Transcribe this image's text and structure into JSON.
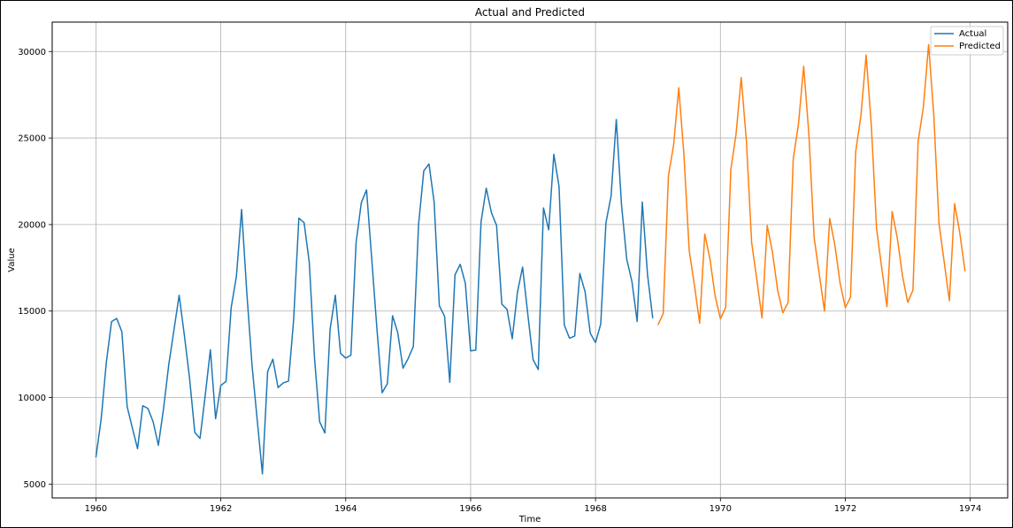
{
  "chart_data": {
    "type": "line",
    "title": "Actual and Predicted",
    "xlabel": "Time",
    "ylabel": "Value",
    "xlim": [
      1959.3,
      1974.6
    ],
    "ylim": [
      4200,
      31700
    ],
    "xticks": [
      1960,
      1962,
      1964,
      1966,
      1968,
      1970,
      1972,
      1974
    ],
    "yticks": [
      5000,
      10000,
      15000,
      20000,
      25000,
      30000
    ],
    "grid": true,
    "legend": "top-right",
    "series": [
      {
        "name": "Actual",
        "color": "#1f77b4",
        "start": 1960,
        "step": 0.08333,
        "values": [
          6550,
          8730,
          12040,
          14390,
          14570,
          13800,
          9480,
          8250,
          7040,
          9530,
          9370,
          8600,
          7240,
          9380,
          11920,
          13900,
          15910,
          13600,
          11100,
          7980,
          7640,
          10100,
          12760,
          8780,
          10700,
          10930,
          15200,
          17000,
          20870,
          16040,
          11850,
          8670,
          5590,
          11500,
          12220,
          10580,
          10850,
          10950,
          14500,
          20370,
          20110,
          17800,
          12270,
          8600,
          7950,
          13950,
          15920,
          12560,
          12280,
          12450,
          18960,
          21260,
          22000,
          18000,
          14000,
          10280,
          10800,
          14730,
          13750,
          11700,
          12250,
          12950,
          20000,
          23100,
          23500,
          21300,
          15300,
          14700,
          10880,
          17100,
          17700,
          16600,
          12700,
          12740,
          20150,
          22100,
          20680,
          19950,
          15400,
          15100,
          13400,
          16100,
          17540,
          14800,
          12200,
          11620,
          20960,
          19700,
          24060,
          22200,
          14200,
          13430,
          13560,
          17170,
          16120,
          13720,
          13180,
          14250,
          20100,
          21650,
          26070,
          21140,
          18000,
          16700,
          14400,
          21300,
          17100,
          14580
        ]
      },
      {
        "name": "Predicted",
        "color": "#ff7f0e",
        "start": 1969,
        "step": 0.08333,
        "values": [
          14200,
          14850,
          22800,
          24600,
          27900,
          24000,
          18500,
          16500,
          14300,
          19450,
          18000,
          15850,
          14550,
          15200,
          23200,
          25200,
          28500,
          24800,
          18950,
          16800,
          14600,
          19950,
          18400,
          16200,
          14900,
          15500,
          23800,
          25800,
          29150,
          25200,
          19250,
          17100,
          15000,
          20350,
          18800,
          16600,
          15200,
          15800,
          24200,
          26300,
          29800,
          25700,
          19750,
          17500,
          15250,
          20750,
          19200,
          17000,
          15500,
          16200,
          24800,
          26800,
          30400,
          26300,
          20100,
          17850,
          15600,
          21200,
          19500,
          17300
        ]
      }
    ]
  }
}
